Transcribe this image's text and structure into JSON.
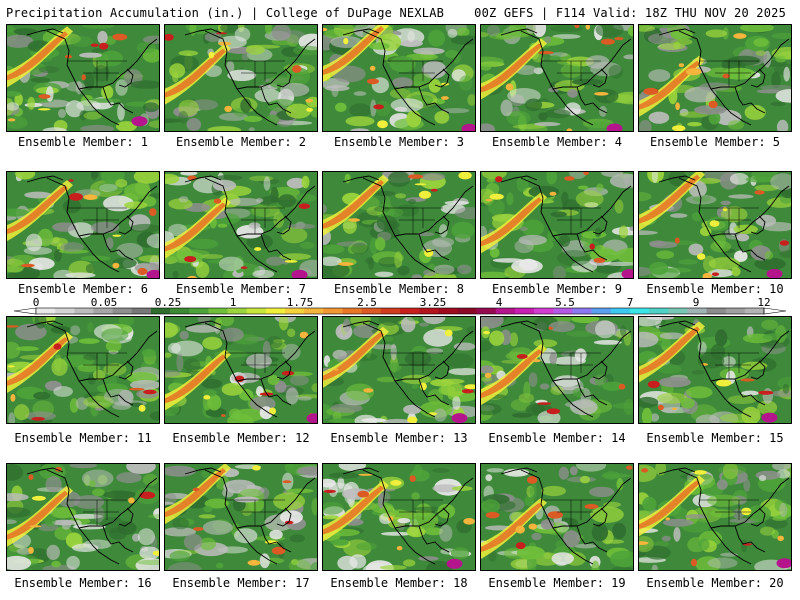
{
  "header": {
    "left": "Precipitation Accumulation (in.) | College of DuPage NEXLAB",
    "right": "00Z GEFS | F114 Valid: 18Z THU NOV 20 2025"
  },
  "members": [
    {
      "caption": "Ensemble Member: 1"
    },
    {
      "caption": "Ensemble Member: 2"
    },
    {
      "caption": "Ensemble Member: 3"
    },
    {
      "caption": "Ensemble Member: 4"
    },
    {
      "caption": "Ensemble Member: 5"
    },
    {
      "caption": "Ensemble Member: 6"
    },
    {
      "caption": "Ensemble Member: 7"
    },
    {
      "caption": "Ensemble Member: 8"
    },
    {
      "caption": "Ensemble Member: 9"
    },
    {
      "caption": "Ensemble Member: 10"
    },
    {
      "caption": "Ensemble Member: 11"
    },
    {
      "caption": "Ensemble Member: 12"
    },
    {
      "caption": "Ensemble Member: 13"
    },
    {
      "caption": "Ensemble Member: 14"
    },
    {
      "caption": "Ensemble Member: 15"
    },
    {
      "caption": "Ensemble Member: 16"
    },
    {
      "caption": "Ensemble Member: 17"
    },
    {
      "caption": "Ensemble Member: 18"
    },
    {
      "caption": "Ensemble Member: 19"
    },
    {
      "caption": "Ensemble Member: 20"
    }
  ],
  "legend": {
    "labels": [
      "0",
      "0.05",
      "0.25",
      "1",
      "1.75",
      "2.5",
      "3.25",
      "4",
      "5.5",
      "7",
      "9",
      "12"
    ],
    "colors": [
      "#e8e8e8",
      "#d4d4d4",
      "#bdbdbd",
      "#a6a6a6",
      "#8f8f8f",
      "#787878",
      "#2f6e2f",
      "#3c8a34",
      "#4ea33a",
      "#6fbf3a",
      "#9bd43c",
      "#c8e63c",
      "#f0f03c",
      "#f5d23c",
      "#f5b43c",
      "#f09632",
      "#e67828",
      "#dc5a23",
      "#d23c1e",
      "#c81e1e",
      "#b4141e",
      "#a00a1e",
      "#8c0a28",
      "#960a50",
      "#b4148c",
      "#c81eb4",
      "#d23cd2",
      "#b45ae6",
      "#8c78f0",
      "#5aa0f0",
      "#3cc8f0",
      "#3ce6e6",
      "#50d2c8",
      "#78c8b4",
      "#a0b4b4",
      "#8c8c8c",
      "#a0a0a0",
      "#b4b4b4"
    ]
  }
}
